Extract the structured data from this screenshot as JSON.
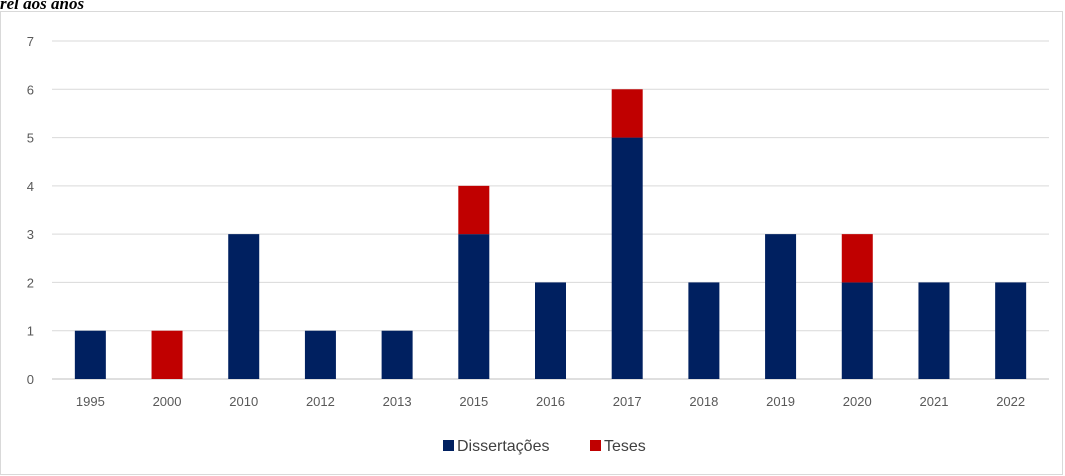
{
  "caption": "rel aos anos",
  "chart_data": {
    "type": "bar",
    "stacked": true,
    "categories": [
      "1995",
      "2000",
      "2010",
      "2012",
      "2013",
      "2015",
      "2016",
      "2017",
      "2018",
      "2019",
      "2020",
      "2021",
      "2022"
    ],
    "series": [
      {
        "name": "Dissertações",
        "color": "#002060",
        "values": [
          1,
          0,
          3,
          1,
          1,
          3,
          2,
          5,
          2,
          3,
          2,
          2,
          2
        ]
      },
      {
        "name": "Teses",
        "color": "#C00000",
        "values": [
          0,
          1,
          0,
          0,
          0,
          1,
          0,
          1,
          0,
          0,
          1,
          0,
          0
        ]
      }
    ],
    "ylim": [
      0,
      7
    ],
    "yticks": [
      0,
      1,
      2,
      3,
      4,
      5,
      6,
      7
    ],
    "grid": true,
    "legend_position": "bottom"
  }
}
